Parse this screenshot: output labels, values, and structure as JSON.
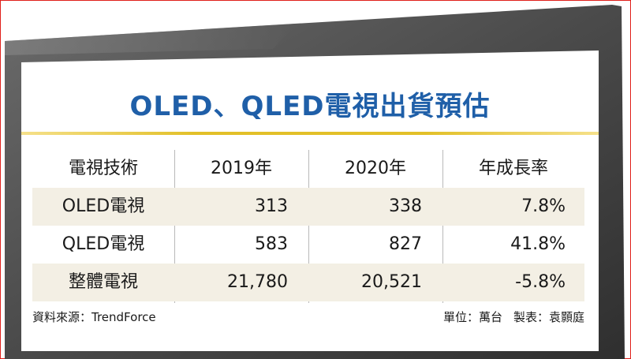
{
  "chart_data": {
    "type": "table",
    "title": "OLED、QLED電視出貨預估",
    "columns": [
      "電視技術",
      "2019年",
      "2020年",
      "年成長率"
    ],
    "rows": [
      [
        "OLED電視",
        "313",
        "338",
        "7.8%"
      ],
      [
        "QLED電視",
        "583",
        "827",
        "41.8%"
      ],
      [
        "整體電視",
        "21,780",
        "20,521",
        "-5.8%"
      ]
    ]
  },
  "footer": {
    "source": "資料來源：TrendForce",
    "unit": "單位：萬台",
    "maker": "製表：袁顥庭"
  },
  "colors": {
    "title": "#1f5fa8",
    "rule": "#e2c028",
    "row_shade": "#f3efe4",
    "frame": "#4a4a4a"
  }
}
